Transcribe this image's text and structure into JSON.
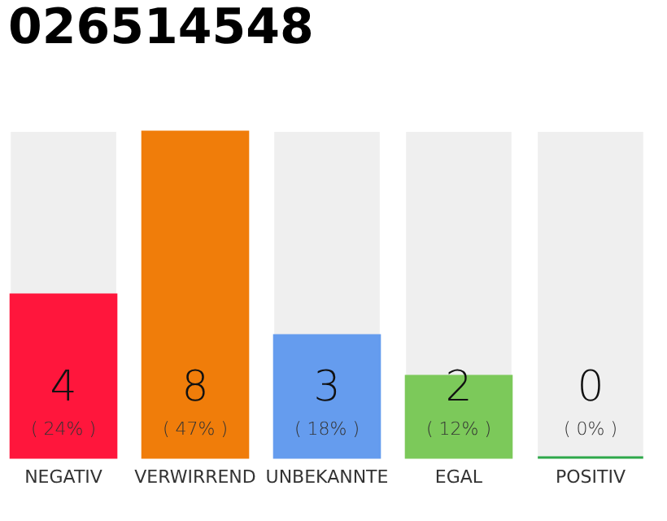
{
  "chart_data": {
    "type": "bar",
    "title": "026514548",
    "categories": [
      "NEGATIV",
      "VERWIRREND",
      "UNBEKANNTE",
      "EGAL",
      "POSITIV"
    ],
    "values": [
      4,
      8,
      3,
      2,
      0
    ],
    "colors": [
      "#ff163c",
      "#f07d0a",
      "#659cee",
      "#7cc95a",
      "#2ea84a"
    ],
    "data_labels": true,
    "annotations": [
      "( 24% )",
      "( 47% )",
      "( 18% )",
      "( 12% )",
      "( 0% )"
    ]
  }
}
